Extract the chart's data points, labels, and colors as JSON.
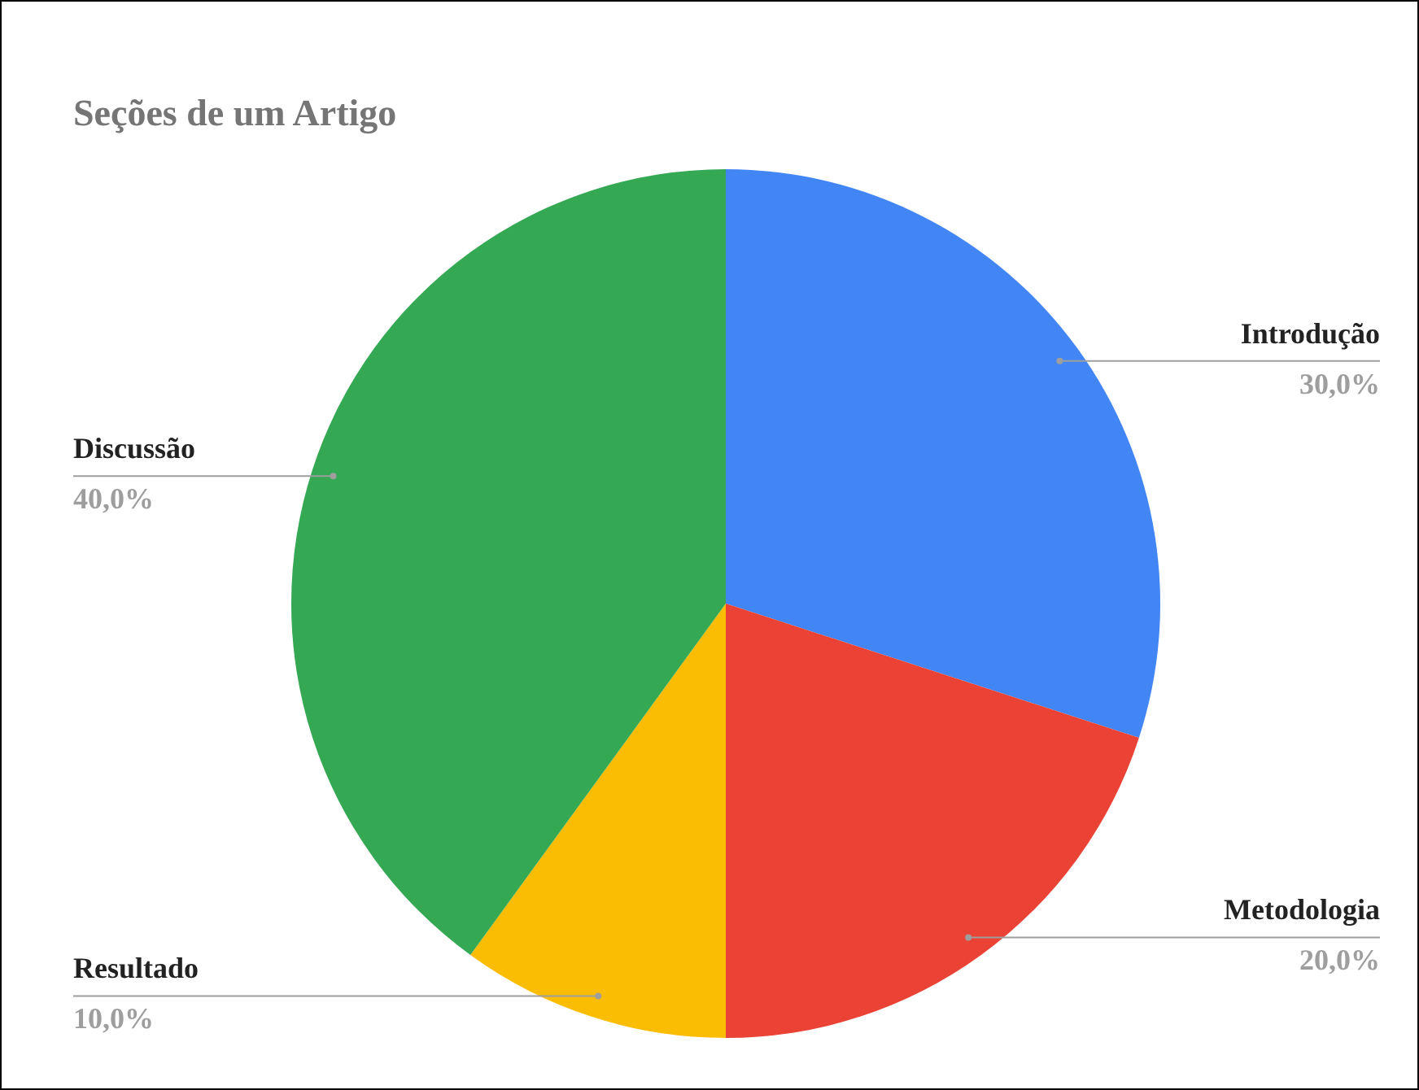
{
  "chart_data": {
    "type": "pie",
    "title": "Seções de um Artigo",
    "categories": [
      "Introdução",
      "Metodologia",
      "Resultado",
      "Discussão"
    ],
    "values": [
      30,
      20,
      10,
      40
    ],
    "colors": [
      "#4285f4",
      "#ea4335",
      "#fbbc04",
      "#34a853"
    ],
    "value_labels": [
      "30,0%",
      "20,0%",
      "10,0%",
      "40,0%"
    ]
  }
}
